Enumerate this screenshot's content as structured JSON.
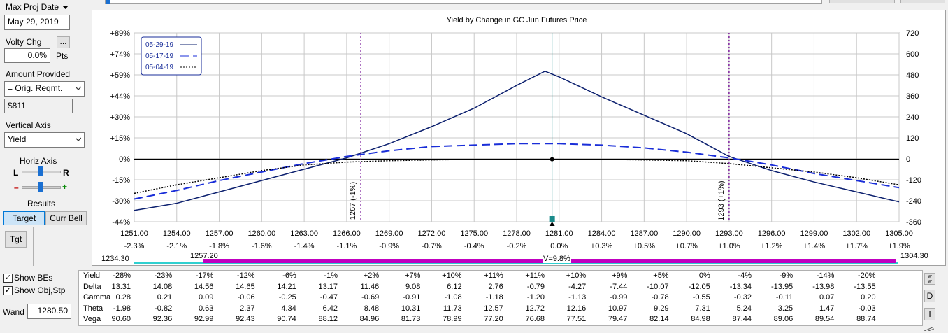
{
  "left_panel": {
    "max_proj_date_label": "Max Proj Date",
    "max_proj_date_value": "May 29, 2019",
    "volty_chg_label": "Volty Chg",
    "volty_btn": "...",
    "volty_value": "0.0%",
    "volty_unit": "Pts",
    "amount_provided_label": "Amount Provided",
    "amount_provided_value": "= Orig. Reqmt.",
    "amount_value": "$811",
    "vertical_axis_label": "Vertical Axis",
    "vertical_axis_value": "Yield",
    "horiz_axis_label": "Horiz Axis",
    "horiz_l": "L",
    "horiz_r": "R",
    "minus": "–",
    "plus": "+",
    "results_label": "Results",
    "target_btn": "Target",
    "currbell_btn": "Curr Bell",
    "tgt_btn": "Tgt"
  },
  "bottom_left": {
    "show_bes": "Show BEs",
    "show_bes_checked": true,
    "show_obj": "Show Obj,Stp",
    "show_obj_checked": true,
    "wand_label": "Wand",
    "wand_value": "1280.50"
  },
  "side_buttons": {
    "w": "w w",
    "d": "D",
    "i": "I"
  },
  "slider_bar": {
    "left_value": "1234.30",
    "mid_value": "1257.20",
    "center_label": "V=9.8%",
    "right_value": "1304.30"
  },
  "chart_data": {
    "type": "line",
    "title": "Yield by Change in GC Jun Futures Price",
    "x_ticks": [
      "1251.00",
      "1254.00",
      "1257.00",
      "1260.00",
      "1263.00",
      "1266.00",
      "1269.00",
      "1272.00",
      "1275.00",
      "1278.00",
      "1281.00",
      "1284.00",
      "1287.00",
      "1290.00",
      "1293.00",
      "1296.00",
      "1299.00",
      "1302.00",
      "1305.00"
    ],
    "x_pct_ticks": [
      "-2.3%",
      "-2.1%",
      "-1.8%",
      "-1.6%",
      "-1.4%",
      "-1.1%",
      "-0.9%",
      "-0.7%",
      "-0.4%",
      "-0.2%",
      "0.0%",
      "+0.3%",
      "+0.5%",
      "+0.7%",
      "+1.0%",
      "+1.2%",
      "+1.4%",
      "+1.7%",
      "+1.9%"
    ],
    "y_left_ticks": [
      "+89%",
      "+74%",
      "+59%",
      "+44%",
      "+30%",
      "+15%",
      "0%",
      "-15%",
      "-30%",
      "-44%"
    ],
    "y_right_ticks": [
      "720",
      "600",
      "480",
      "360",
      "240",
      "120",
      "0",
      "-120",
      "-240",
      "-360"
    ],
    "xlim": [
      1251,
      1305
    ],
    "ylim": [
      -44,
      89
    ],
    "current_price": 1280.5,
    "breakevens": [
      {
        "x": 1267,
        "label": "1267 (-1%)"
      },
      {
        "x": 1293,
        "label": "1293 (+1%)"
      }
    ],
    "legend_position": "top-left",
    "series": [
      {
        "name": "05-29-19",
        "style": "solid",
        "color": "#0b1f6e",
        "x": [
          1251,
          1254,
          1257,
          1260,
          1263,
          1266,
          1269,
          1272,
          1275,
          1278,
          1280,
          1281,
          1284,
          1287,
          1290,
          1293,
          1296,
          1299,
          1302,
          1305
        ],
        "y": [
          -36,
          -31,
          -23,
          -15,
          -7,
          1,
          11,
          23,
          36,
          52,
          62,
          58,
          44,
          31,
          18,
          2,
          -8,
          -16,
          -23,
          -30
        ]
      },
      {
        "name": "05-17-19",
        "style": "dash",
        "color": "#1a2ed8",
        "x": [
          1251,
          1254,
          1257,
          1260,
          1263,
          1266,
          1269,
          1272,
          1275,
          1278,
          1281,
          1284,
          1287,
          1290,
          1293,
          1296,
          1299,
          1302,
          1305
        ],
        "y": [
          -28,
          -22,
          -15,
          -9,
          -3,
          2,
          6,
          9,
          10,
          11,
          11,
          10,
          8,
          5,
          1,
          -4,
          -10,
          -15,
          -20
        ]
      },
      {
        "name": "05-04-19",
        "style": "dot",
        "color": "#000000",
        "x": [
          1251,
          1254,
          1257,
          1260,
          1263,
          1266,
          1269,
          1272,
          1275,
          1278,
          1281,
          1284,
          1287,
          1290,
          1293,
          1296,
          1299,
          1302,
          1305
        ],
        "y": [
          -24,
          -18,
          -13,
          -8,
          -4,
          -2,
          -1,
          -0.5,
          0,
          0,
          0,
          0,
          -0.5,
          -1,
          -3,
          -6,
          -9,
          -13,
          -18
        ]
      }
    ]
  },
  "table": {
    "row_labels": [
      "Yield",
      "Delta",
      "Gamma",
      "Theta",
      "Vega"
    ],
    "rows": [
      [
        "-28%",
        "-23%",
        "-17%",
        "-12%",
        "-6%",
        "-1%",
        "+2%",
        "+7%",
        "+10%",
        "+11%",
        "+11%",
        "+10%",
        "+9%",
        "+5%",
        "0%",
        "-4%",
        "-9%",
        "-14%",
        "-20%"
      ],
      [
        "13.31",
        "14.08",
        "14.56",
        "14.65",
        "14.21",
        "13.17",
        "11.46",
        "9.08",
        "6.12",
        "2.76",
        "-0.79",
        "-4.27",
        "-7.44",
        "-10.07",
        "-12.05",
        "-13.34",
        "-13.95",
        "-13.98",
        "-13.55"
      ],
      [
        "0.28",
        "0.21",
        "0.09",
        "-0.06",
        "-0.25",
        "-0.47",
        "-0.69",
        "-0.91",
        "-1.08",
        "-1.18",
        "-1.20",
        "-1.13",
        "-0.99",
        "-0.78",
        "-0.55",
        "-0.32",
        "-0.11",
        "0.07",
        "0.20"
      ],
      [
        "-1.98",
        "-0.82",
        "0.63",
        "2.37",
        "4.34",
        "6.42",
        "8.48",
        "10.31",
        "11.73",
        "12.57",
        "12.72",
        "12.16",
        "10.97",
        "9.29",
        "7.31",
        "5.24",
        "3.25",
        "1.47",
        "-0.03"
      ],
      [
        "90.60",
        "92.36",
        "92.99",
        "92.43",
        "90.74",
        "88.12",
        "84.96",
        "81.73",
        "78.99",
        "77.20",
        "76.68",
        "77.51",
        "79.47",
        "82.14",
        "84.98",
        "87.44",
        "89.06",
        "89.54",
        "88.74"
      ]
    ]
  }
}
